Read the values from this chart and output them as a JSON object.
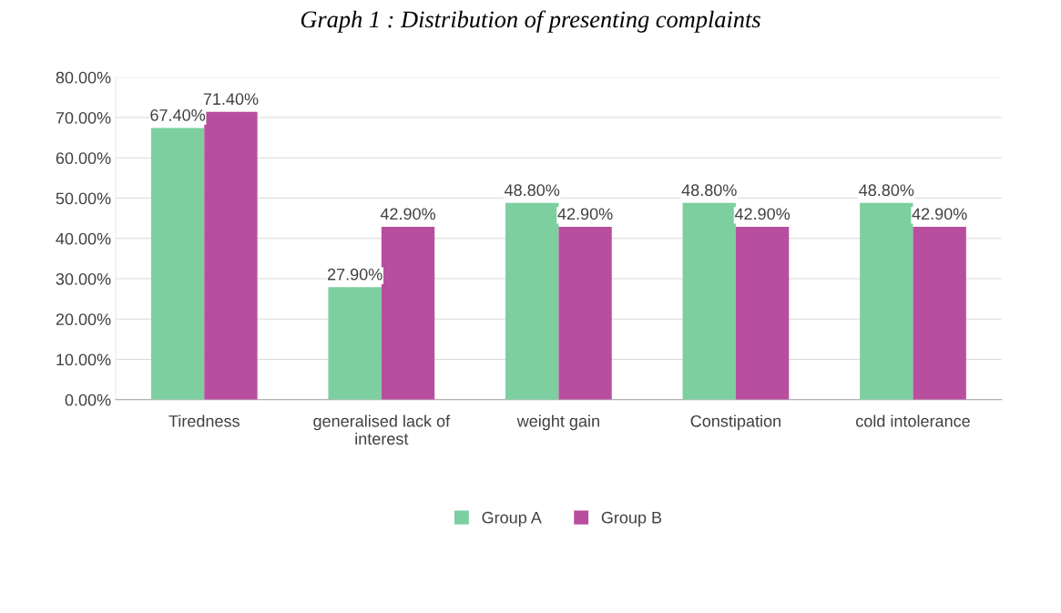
{
  "chart_data": {
    "type": "bar",
    "title": "Graph 1 : Distribution of presenting complaints",
    "categories": [
      "Tiredness",
      "generalised lack of\ninterest",
      "weight gain",
      "Constipation",
      "cold intolerance"
    ],
    "series": [
      {
        "name": "Group A",
        "color": "#7dcfa0",
        "values": [
          67.4,
          27.9,
          48.8,
          48.8,
          48.8
        ],
        "value_labels": [
          "67.40%",
          "27.90%",
          "48.80%",
          "48.80%",
          "48.80%"
        ]
      },
      {
        "name": "Group B",
        "color": "#b84f9e",
        "values": [
          71.4,
          42.9,
          42.9,
          42.9,
          42.9
        ],
        "value_labels": [
          "71.40%",
          "42.90%",
          "42.90%",
          "42.90%",
          "42.90%"
        ]
      }
    ],
    "ylim": [
      0,
      80
    ],
    "yticks": [
      {
        "value": 0,
        "label": "0.00%"
      },
      {
        "value": 10,
        "label": "10.00%"
      },
      {
        "value": 20,
        "label": "20.00%"
      },
      {
        "value": 30,
        "label": "30.00%"
      },
      {
        "value": 40,
        "label": "40.00%"
      },
      {
        "value": 50,
        "label": "50.00%"
      },
      {
        "value": 60,
        "label": "60.00%"
      },
      {
        "value": 70,
        "label": "70.00%"
      },
      {
        "value": 80,
        "label": "80.00%"
      }
    ],
    "grid": "y",
    "legend": "bottom"
  }
}
